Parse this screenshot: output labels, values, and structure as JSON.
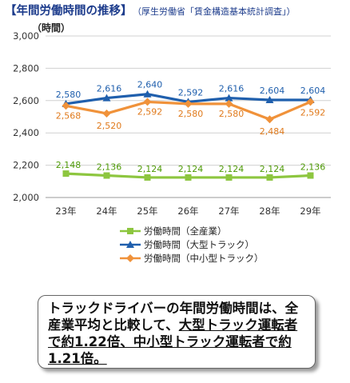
{
  "header": {
    "title": "【年間労働時間の推移】",
    "source": "（厚生労働省「賃金構造基本統計調査」）"
  },
  "colors": {
    "green": "#8dc63f",
    "blue": "#1f5fad",
    "orange": "#f0923a",
    "label_green": "#4e9a06",
    "label_blue": "#1f5fad",
    "label_orange": "#e07a1c"
  },
  "chart_data": {
    "type": "line",
    "ylabel": "（時間）",
    "ylim": [
      2000,
      3000
    ],
    "yticks": [
      "2,000",
      "2,200",
      "2,400",
      "2,600",
      "2,800",
      "3,000"
    ],
    "categories": [
      "23年",
      "24年",
      "25年",
      "26年",
      "27年",
      "28年",
      "29年"
    ],
    "grid": true,
    "legend_position": "bottom",
    "series": [
      {
        "name": "労働時間（全産業）",
        "values": [
          2148,
          2136,
          2124,
          2124,
          2124,
          2124,
          2136
        ],
        "labels": [
          "2,148",
          "2,136",
          "2,124",
          "2,124",
          "2,124",
          "2,124",
          "2,136"
        ],
        "marker": "square"
      },
      {
        "name": "労働時間（大型トラック）",
        "values": [
          2580,
          2616,
          2640,
          2592,
          2616,
          2604,
          2604
        ],
        "labels": [
          "2,580",
          "2,616",
          "2,640",
          "2,592",
          "2,616",
          "2,604",
          "2,604"
        ],
        "marker": "triangle"
      },
      {
        "name": "労働時間（中小型トラック）",
        "values": [
          2568,
          2520,
          2592,
          2580,
          2580,
          2484,
          2592
        ],
        "labels": [
          "2,568",
          "2,520",
          "2,592",
          "2,580",
          "2,580",
          "2,484",
          "2,592"
        ],
        "marker": "diamond"
      }
    ]
  },
  "callout": {
    "line1": "トラックドライバーの年間労働時間は、全",
    "line2a": "産業平均と比較して、",
    "line2b": "大型トラック運転者",
    "line3": "で約1.22倍、中小型トラック運転者で約",
    "line4": "1.21倍。"
  }
}
